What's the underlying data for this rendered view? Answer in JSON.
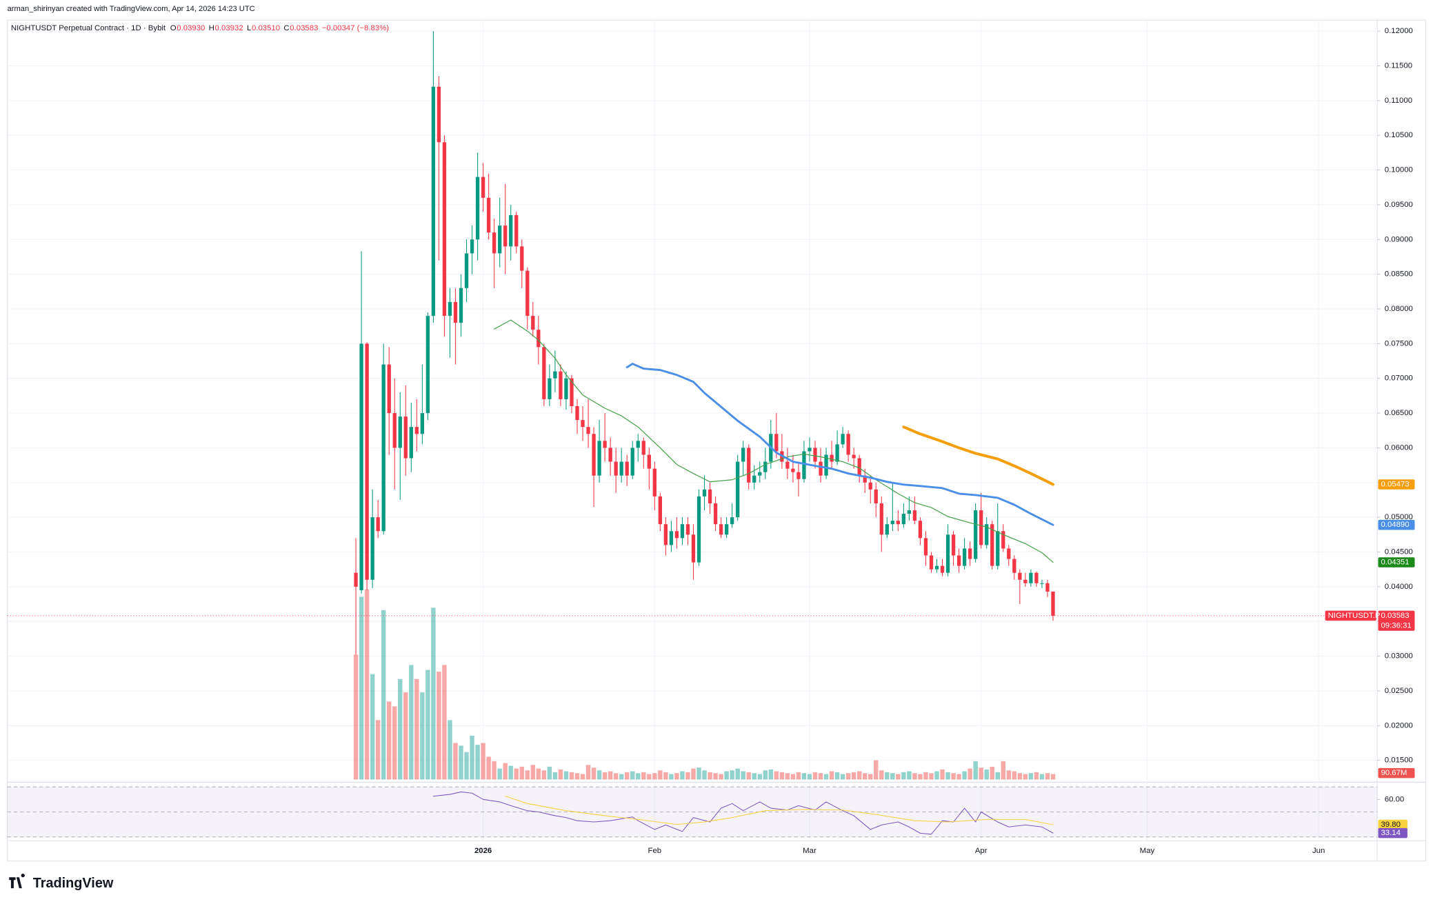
{
  "header": "arman_shirinyan created with TradingView.com, Apr 14, 2026 14:23 UTC",
  "logo": "TradingView",
  "chart_data": {
    "type": "candlestick",
    "title": "NIGHTUSDT Perpetual Contract · 1D · Bybit",
    "legend_values": [
      {
        "label": "O",
        "value": "0.03930"
      },
      {
        "label": "H",
        "value": "0.03932"
      },
      {
        "label": "L",
        "value": "0.03510"
      },
      {
        "label": "C",
        "value": "0.03583"
      }
    ],
    "change": "−0.00347 (−8.83%)",
    "up_color": "#089981",
    "down_color": "#f23645",
    "ohlc": [
      [
        0.042,
        0.047,
        0.0302,
        0.04
      ],
      [
        0.0395,
        0.0883,
        0.039,
        0.075
      ],
      [
        0.075,
        0.0752,
        0.0395,
        0.041
      ],
      [
        0.041,
        0.054,
        0.0398,
        0.05
      ],
      [
        0.05,
        0.0525,
        0.047,
        0.048
      ],
      [
        0.048,
        0.075,
        0.0475,
        0.072
      ],
      [
        0.072,
        0.0745,
        0.059,
        0.065
      ],
      [
        0.065,
        0.07,
        0.054,
        0.06
      ],
      [
        0.06,
        0.068,
        0.0525,
        0.0645
      ],
      [
        0.0645,
        0.069,
        0.056,
        0.0585
      ],
      [
        0.0585,
        0.0665,
        0.0565,
        0.063
      ],
      [
        0.063,
        0.067,
        0.0595,
        0.062
      ],
      [
        0.062,
        0.072,
        0.0605,
        0.065
      ],
      [
        0.065,
        0.0795,
        0.064,
        0.079
      ],
      [
        0.079,
        0.12,
        0.078,
        0.112
      ],
      [
        0.112,
        0.1135,
        0.087,
        0.104
      ],
      [
        0.104,
        0.105,
        0.076,
        0.079
      ],
      [
        0.079,
        0.083,
        0.073,
        0.081
      ],
      [
        0.081,
        0.083,
        0.072,
        0.078
      ],
      [
        0.078,
        0.085,
        0.076,
        0.083
      ],
      [
        0.083,
        0.09,
        0.081,
        0.088
      ],
      [
        0.088,
        0.092,
        0.085,
        0.09
      ],
      [
        0.09,
        0.1025,
        0.087,
        0.099
      ],
      [
        0.099,
        0.101,
        0.094,
        0.096
      ],
      [
        0.096,
        0.0995,
        0.09,
        0.091
      ],
      [
        0.091,
        0.093,
        0.083,
        0.088
      ],
      [
        0.088,
        0.096,
        0.086,
        0.092
      ],
      [
        0.092,
        0.098,
        0.085,
        0.089
      ],
      [
        0.089,
        0.095,
        0.087,
        0.0935
      ],
      [
        0.0935,
        0.094,
        0.088,
        0.089
      ],
      [
        0.089,
        0.09,
        0.083,
        0.0855
      ],
      [
        0.0855,
        0.086,
        0.077,
        0.079
      ],
      [
        0.079,
        0.081,
        0.076,
        0.077
      ],
      [
        0.077,
        0.079,
        0.072,
        0.0745
      ],
      [
        0.0745,
        0.075,
        0.066,
        0.067
      ],
      [
        0.067,
        0.072,
        0.066,
        0.07
      ],
      [
        0.07,
        0.074,
        0.068,
        0.071
      ],
      [
        0.071,
        0.072,
        0.066,
        0.067
      ],
      [
        0.067,
        0.071,
        0.0655,
        0.07
      ],
      [
        0.07,
        0.0705,
        0.065,
        0.066
      ],
      [
        0.066,
        0.067,
        0.062,
        0.064
      ],
      [
        0.064,
        0.066,
        0.061,
        0.063
      ],
      [
        0.063,
        0.067,
        0.06,
        0.062
      ],
      [
        0.062,
        0.063,
        0.0515,
        0.056
      ],
      [
        0.056,
        0.064,
        0.055,
        0.061
      ],
      [
        0.061,
        0.065,
        0.058,
        0.06
      ],
      [
        0.06,
        0.0615,
        0.056,
        0.058
      ],
      [
        0.058,
        0.06,
        0.0535,
        0.056
      ],
      [
        0.056,
        0.06,
        0.055,
        0.058
      ],
      [
        0.058,
        0.059,
        0.0545,
        0.056
      ],
      [
        0.056,
        0.061,
        0.0555,
        0.06
      ],
      [
        0.06,
        0.062,
        0.058,
        0.061
      ],
      [
        0.061,
        0.0615,
        0.057,
        0.059
      ],
      [
        0.059,
        0.06,
        0.054,
        0.057
      ],
      [
        0.057,
        0.058,
        0.051,
        0.053
      ],
      [
        0.053,
        0.0535,
        0.048,
        0.049
      ],
      [
        0.049,
        0.05,
        0.0445,
        0.046
      ],
      [
        0.046,
        0.0495,
        0.045,
        0.048
      ],
      [
        0.048,
        0.05,
        0.0455,
        0.047
      ],
      [
        0.047,
        0.05,
        0.046,
        0.049
      ],
      [
        0.049,
        0.05,
        0.046,
        0.0475
      ],
      [
        0.0475,
        0.049,
        0.041,
        0.0435
      ],
      [
        0.0435,
        0.054,
        0.043,
        0.053
      ],
      [
        0.053,
        0.056,
        0.051,
        0.054
      ],
      [
        0.054,
        0.055,
        0.0505,
        0.052
      ],
      [
        0.052,
        0.053,
        0.048,
        0.049
      ],
      [
        0.049,
        0.05,
        0.047,
        0.0475
      ],
      [
        0.0475,
        0.05,
        0.047,
        0.049
      ],
      [
        0.049,
        0.052,
        0.0485,
        0.05
      ],
      [
        0.05,
        0.059,
        0.0495,
        0.058
      ],
      [
        0.058,
        0.061,
        0.056,
        0.06
      ],
      [
        0.06,
        0.0605,
        0.054,
        0.055
      ],
      [
        0.055,
        0.0575,
        0.054,
        0.056
      ],
      [
        0.056,
        0.058,
        0.055,
        0.0565
      ],
      [
        0.0565,
        0.06,
        0.0555,
        0.058
      ],
      [
        0.058,
        0.064,
        0.057,
        0.062
      ],
      [
        0.062,
        0.065,
        0.0585,
        0.0595
      ],
      [
        0.0595,
        0.062,
        0.057,
        0.058
      ],
      [
        0.058,
        0.06,
        0.0555,
        0.057
      ],
      [
        0.057,
        0.059,
        0.055,
        0.0565
      ],
      [
        0.0565,
        0.058,
        0.053,
        0.0555
      ],
      [
        0.0555,
        0.061,
        0.055,
        0.0595
      ],
      [
        0.0595,
        0.0615,
        0.058,
        0.06
      ],
      [
        0.06,
        0.061,
        0.057,
        0.058
      ],
      [
        0.058,
        0.06,
        0.055,
        0.056
      ],
      [
        0.056,
        0.06,
        0.0555,
        0.059
      ],
      [
        0.059,
        0.061,
        0.057,
        0.058
      ],
      [
        0.058,
        0.0625,
        0.0575,
        0.0605
      ],
      [
        0.0605,
        0.063,
        0.06,
        0.062
      ],
      [
        0.062,
        0.0625,
        0.058,
        0.059
      ],
      [
        0.059,
        0.06,
        0.057,
        0.0585
      ],
      [
        0.0585,
        0.059,
        0.055,
        0.056
      ],
      [
        0.056,
        0.057,
        0.0535,
        0.055
      ],
      [
        0.055,
        0.056,
        0.052,
        0.054
      ],
      [
        0.054,
        0.055,
        0.05,
        0.052
      ],
      [
        0.052,
        0.053,
        0.045,
        0.0475
      ],
      [
        0.0475,
        0.05,
        0.047,
        0.049
      ],
      [
        0.049,
        0.055,
        0.048,
        0.0495
      ],
      [
        0.0495,
        0.051,
        0.048,
        0.049
      ],
      [
        0.049,
        0.052,
        0.0485,
        0.0505
      ],
      [
        0.0505,
        0.053,
        0.0495,
        0.051
      ],
      [
        0.051,
        0.053,
        0.049,
        0.0495
      ],
      [
        0.0495,
        0.05,
        0.046,
        0.047
      ],
      [
        0.047,
        0.048,
        0.043,
        0.0445
      ],
      [
        0.0445,
        0.045,
        0.042,
        0.0425
      ],
      [
        0.0425,
        0.044,
        0.042,
        0.043
      ],
      [
        0.043,
        0.044,
        0.0415,
        0.042
      ],
      [
        0.042,
        0.049,
        0.0415,
        0.0475
      ],
      [
        0.0475,
        0.048,
        0.043,
        0.0445
      ],
      [
        0.0445,
        0.0455,
        0.042,
        0.043
      ],
      [
        0.043,
        0.047,
        0.0425,
        0.0455
      ],
      [
        0.0455,
        0.0465,
        0.043,
        0.044
      ],
      [
        0.044,
        0.052,
        0.0435,
        0.051
      ],
      [
        0.051,
        0.0535,
        0.0455,
        0.046
      ],
      [
        0.046,
        0.05,
        0.0455,
        0.049
      ],
      [
        0.049,
        0.0495,
        0.0425,
        0.043
      ],
      [
        0.043,
        0.052,
        0.0425,
        0.048
      ],
      [
        0.048,
        0.049,
        0.045,
        0.0455
      ],
      [
        0.0455,
        0.046,
        0.043,
        0.044
      ],
      [
        0.044,
        0.0445,
        0.041,
        0.042
      ],
      [
        0.042,
        0.0425,
        0.0375,
        0.041
      ],
      [
        0.041,
        0.042,
        0.04,
        0.0405
      ],
      [
        0.0405,
        0.0425,
        0.04,
        0.042
      ],
      [
        0.042,
        0.0422,
        0.04,
        0.0405
      ],
      [
        0.0405,
        0.041,
        0.0398,
        0.0405
      ],
      [
        0.0405,
        0.041,
        0.0385,
        0.0393
      ],
      [
        0.0393,
        0.03932,
        0.0351,
        0.03583
      ]
    ],
    "xlim": [
      -63,
      184.6
    ],
    "xticks": [
      {
        "value": 23,
        "label": "2026"
      },
      {
        "value": 54,
        "label": "Feb"
      },
      {
        "value": 82,
        "label": "Mar"
      },
      {
        "value": 113,
        "label": "Apr"
      },
      {
        "value": 143,
        "label": "May"
      },
      {
        "value": 174,
        "label": "Jun"
      }
    ],
    "ylim": [
      0.012237,
      0.12132
    ],
    "yticks": [
      {
        "value": 0.015,
        "label": "0.01500"
      },
      {
        "value": 0.02,
        "label": "0.02000"
      },
      {
        "value": 0.025,
        "label": "0.02500"
      },
      {
        "value": 0.03,
        "label": "0.03000"
      },
      {
        "value": 0.035,
        "label": "0.03500"
      },
      {
        "value": 0.04,
        "label": "0.04000"
      },
      {
        "value": 0.045,
        "label": "0.04500"
      },
      {
        "value": 0.05,
        "label": "0.05000"
      },
      {
        "value": 0.055,
        "label": "0.05500"
      },
      {
        "value": 0.06,
        "label": "0.06000"
      },
      {
        "value": 0.065,
        "label": "0.06500"
      },
      {
        "value": 0.07,
        "label": "0.07000"
      },
      {
        "value": 0.075,
        "label": "0.07500"
      },
      {
        "value": 0.08,
        "label": "0.08000"
      },
      {
        "value": 0.085,
        "label": "0.08500"
      },
      {
        "value": 0.09,
        "label": "0.09000"
      },
      {
        "value": 0.095,
        "label": "0.09500"
      },
      {
        "value": 0.1,
        "label": "0.10000"
      },
      {
        "value": 0.105,
        "label": "0.10500"
      },
      {
        "value": 0.11,
        "label": "0.11000"
      },
      {
        "value": 0.115,
        "label": "0.11500"
      },
      {
        "value": 0.12,
        "label": "0.12000"
      }
    ],
    "grid": true,
    "price_line": {
      "symbol": "NIGHTUSDT.P",
      "label": "0.03583",
      "countdown": "09:36:31"
    },
    "volume": {
      "values": [
        2050,
        3000,
        3120,
        1730,
        975,
        2780,
        1280,
        1200,
        1650,
        1430,
        1880,
        1650,
        1430,
        1800,
        2820,
        1770,
        1880,
        975,
        600,
        555,
        450,
        720,
        570,
        600,
        375,
        300,
        180,
        270,
        225,
        180,
        210,
        150,
        240,
        180,
        150,
        210,
        120,
        165,
        135,
        120,
        105,
        90,
        240,
        195,
        150,
        120,
        135,
        105,
        90,
        120,
        135,
        105,
        120,
        90,
        105,
        150,
        120,
        90,
        105,
        135,
        120,
        180,
        195,
        150,
        120,
        105,
        90,
        135,
        150,
        180,
        135,
        120,
        105,
        90,
        150,
        165,
        135,
        120,
        105,
        90,
        120,
        105,
        90,
        120,
        105,
        90,
        135,
        120,
        90,
        105,
        120,
        135,
        105,
        90,
        315,
        150,
        120,
        105,
        90,
        120,
        135,
        105,
        90,
        120,
        105,
        135,
        165,
        120,
        105,
        90,
        135,
        180,
        300,
        195,
        165,
        210,
        120,
        300,
        150,
        135,
        105,
        90,
        105,
        120,
        90,
        105,
        90.67
      ],
      "ylim": [
        0,
        12435
      ],
      "up_color": "#26a69a",
      "down_color": "#ef5350",
      "last_label": "90.67M"
    },
    "moving_averages": [
      {
        "color": "#43a047",
        "width": 0.9,
        "label_bg": "#1b8a1b",
        "last_label": "0.04351",
        "x": [
          25,
          28,
          31,
          33,
          36,
          38,
          41,
          45,
          48,
          51,
          55,
          58,
          61,
          64,
          68,
          71,
          74,
          78,
          81,
          84,
          88,
          91,
          94,
          98,
          101,
          104,
          107,
          111,
          114,
          117,
          121,
          124,
          126
        ],
        "values": [
          0.0771,
          0.0784,
          0.0768,
          0.0755,
          0.0729,
          0.0705,
          0.0676,
          0.0657,
          0.0646,
          0.063,
          0.06,
          0.0576,
          0.0563,
          0.0551,
          0.0554,
          0.0563,
          0.0576,
          0.0587,
          0.0591,
          0.0587,
          0.058,
          0.0571,
          0.0554,
          0.0534,
          0.0521,
          0.0514,
          0.0501,
          0.0492,
          0.0486,
          0.0475,
          0.0462,
          0.0449,
          0.04351
        ]
      },
      {
        "color": "#4a8fe7",
        "width": 2.2,
        "label_bg": "#4a8fe7",
        "last_label": "0.04890",
        "x": [
          49,
          50,
          52,
          55,
          58,
          61,
          63,
          66,
          69,
          73,
          76,
          79,
          83,
          86,
          89,
          93,
          96,
          99,
          102,
          106,
          109,
          112,
          116,
          119,
          122,
          126
        ],
        "values": [
          0.0716,
          0.0721,
          0.0714,
          0.0712,
          0.0705,
          0.0695,
          0.0679,
          0.0659,
          0.0639,
          0.0616,
          0.0593,
          0.058,
          0.0574,
          0.057,
          0.0563,
          0.0557,
          0.0551,
          0.0547,
          0.0545,
          0.0542,
          0.0534,
          0.0532,
          0.0528,
          0.0518,
          0.0505,
          0.0489
        ]
      },
      {
        "color": "#f59d0a",
        "width": 3,
        "label_bg": "#f59d0a",
        "last_label": "0.05473",
        "x": [
          99,
          102,
          106,
          109,
          112,
          116,
          119,
          122,
          126
        ],
        "values": [
          0.063,
          0.062,
          0.0609,
          0.06,
          0.0592,
          0.0584,
          0.0574,
          0.0563,
          0.05473
        ]
      }
    ],
    "rsi": {
      "ylim": [
        27,
        73.7
      ],
      "bands": [
        30,
        50,
        70
      ],
      "yticks": [
        {
          "value": 60,
          "label": "60.00"
        }
      ],
      "color": "#7e57c2",
      "last_label": "33.14",
      "x": [
        14,
        17,
        19,
        21,
        23,
        26,
        28,
        31,
        33,
        36,
        38,
        40,
        43,
        46,
        50,
        51,
        54,
        56,
        59,
        61,
        64,
        66,
        68,
        70,
        73,
        75,
        78,
        80,
        83,
        85,
        88,
        90,
        93,
        95,
        98,
        100,
        102,
        104,
        106,
        108,
        110,
        112,
        113,
        116,
        118,
        121,
        124,
        126
      ],
      "values": [
        62.6,
        64,
        66,
        65,
        60,
        58,
        55,
        51,
        50,
        47,
        45.5,
        43,
        42,
        43,
        46,
        43,
        36,
        39.6,
        34.4,
        45.5,
        42,
        53,
        56.7,
        51,
        58,
        53,
        51.5,
        55,
        51.5,
        58,
        51,
        47,
        36,
        39.6,
        42,
        38,
        33,
        32.2,
        43,
        42,
        53,
        42,
        50,
        42,
        38,
        39.6,
        38,
        33.14
      ],
      "ma": {
        "color": "#f7d13e",
        "last_label": "39.80",
        "x": [
          27,
          31,
          38,
          45,
          51,
          58,
          63,
          68,
          74,
          81,
          88,
          94,
          101,
          107,
          114,
          121,
          126
        ],
        "values": [
          62.6,
          56.7,
          51,
          47,
          44,
          40,
          42,
          45.5,
          51,
          52,
          51.5,
          48,
          43,
          42,
          44,
          44,
          39.8
        ]
      }
    }
  }
}
